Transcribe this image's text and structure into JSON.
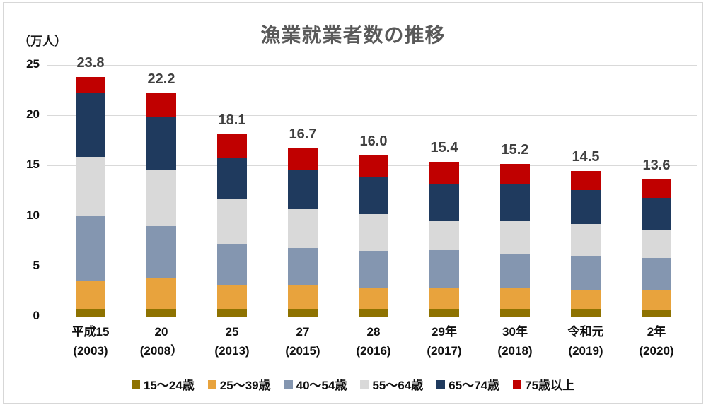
{
  "chart_data": {
    "type": "bar",
    "stacked": true,
    "title": "漁業就業者数の推移",
    "unit_label": "（万人）",
    "ylim": [
      0,
      25
    ],
    "y_ticks": [
      0,
      5,
      10,
      15,
      20,
      25
    ],
    "grid": true,
    "legend_position": "bottom",
    "categories": [
      {
        "line1": "平成15",
        "line2": "(2003)"
      },
      {
        "line1": "20",
        "line2": "(2008）"
      },
      {
        "line1": "25",
        "line2": "(2013)"
      },
      {
        "line1": "27",
        "line2": "(2015)"
      },
      {
        "line1": "28",
        "line2": "(2016)"
      },
      {
        "line1": "29年",
        "line2": "(2017)"
      },
      {
        "line1": "30年",
        "line2": "(2018)"
      },
      {
        "line1": "令和元",
        "line2": "(2019)"
      },
      {
        "line1": "2年",
        "line2": "(2020)"
      }
    ],
    "totals_display": [
      "23.8",
      "22.2",
      "18.1",
      "16.7",
      "16.0",
      "15.4",
      "15.2",
      "14.5",
      "13.6"
    ],
    "series": [
      {
        "name": "15〜24歳",
        "color": "#8e7200",
        "values": [
          0.8,
          0.7,
          0.7,
          0.8,
          0.7,
          0.7,
          0.7,
          0.7,
          0.6
        ]
      },
      {
        "name": "25〜39歳",
        "color": "#e8a33d",
        "values": [
          2.8,
          3.1,
          2.4,
          2.3,
          2.1,
          2.1,
          2.1,
          2.0,
          2.1
        ]
      },
      {
        "name": "40〜54歳",
        "color": "#8496b0",
        "values": [
          6.4,
          5.2,
          4.1,
          3.7,
          3.7,
          3.8,
          3.4,
          3.3,
          3.1
        ]
      },
      {
        "name": "55〜64歳",
        "color": "#d9d9d9",
        "values": [
          5.9,
          5.6,
          4.5,
          3.9,
          3.7,
          2.9,
          3.3,
          3.2,
          2.8
        ]
      },
      {
        "name": "65〜74歳",
        "color": "#1f3a5e",
        "values": [
          6.3,
          5.3,
          4.1,
          3.9,
          3.7,
          3.7,
          3.6,
          3.4,
          3.2
        ]
      },
      {
        "name": "75歳以上",
        "color": "#c00000",
        "values": [
          1.6,
          2.3,
          2.3,
          2.1,
          2.1,
          2.2,
          2.1,
          1.9,
          1.8
        ]
      }
    ],
    "colors": {
      "gridline": "#d9d9d9",
      "frame_border": "#d7d7d7",
      "title_text": "#595959",
      "data_label_text": "#404040",
      "axis_text": "#111111"
    }
  }
}
